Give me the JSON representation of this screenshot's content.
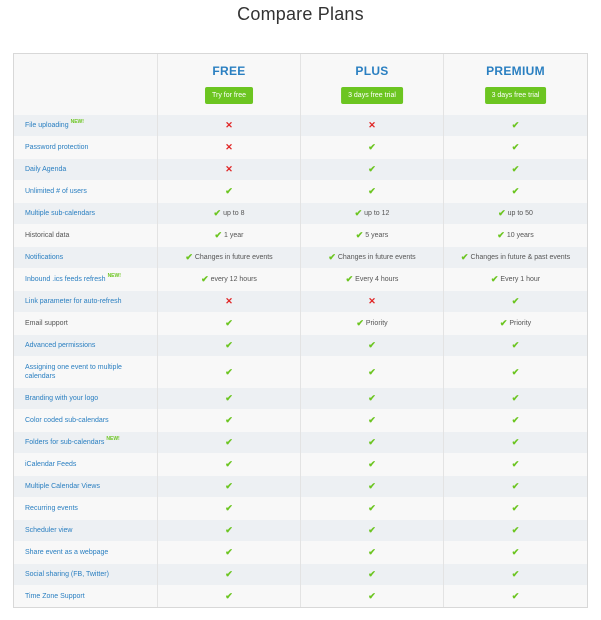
{
  "title": "Compare Plans",
  "plans": [
    {
      "name": "FREE",
      "button": "Try for free"
    },
    {
      "name": "PLUS",
      "button": "3 days free trial"
    },
    {
      "name": "PREMIUM",
      "button": "3 days free trial"
    }
  ],
  "new_badge": "NEW!",
  "features": [
    {
      "label": "File uploading",
      "tag": "NEW!",
      "color": "blue",
      "cells": [
        {
          "icon": "cross",
          "text": ""
        },
        {
          "icon": "cross",
          "text": ""
        },
        {
          "icon": "check",
          "text": ""
        }
      ]
    },
    {
      "label": "Password protection",
      "tag": "",
      "color": "blue",
      "cells": [
        {
          "icon": "cross",
          "text": ""
        },
        {
          "icon": "check",
          "text": ""
        },
        {
          "icon": "check",
          "text": ""
        }
      ]
    },
    {
      "label": "Daily Agenda",
      "tag": "",
      "color": "blue",
      "cells": [
        {
          "icon": "cross",
          "text": ""
        },
        {
          "icon": "check",
          "text": ""
        },
        {
          "icon": "check",
          "text": ""
        }
      ]
    },
    {
      "label": "Unlimited # of users",
      "tag": "",
      "color": "blue",
      "cells": [
        {
          "icon": "check",
          "text": ""
        },
        {
          "icon": "check",
          "text": ""
        },
        {
          "icon": "check",
          "text": ""
        }
      ]
    },
    {
      "label": "Multiple sub-calendars",
      "tag": "",
      "color": "blue",
      "cells": [
        {
          "icon": "check",
          "text": "up to 8"
        },
        {
          "icon": "check",
          "text": "up to 12"
        },
        {
          "icon": "check",
          "text": "up to 50"
        }
      ]
    },
    {
      "label": "Historical data",
      "tag": "",
      "color": "gray",
      "cells": [
        {
          "icon": "check",
          "text": "1 year"
        },
        {
          "icon": "check",
          "text": "5 years"
        },
        {
          "icon": "check",
          "text": "10 years"
        }
      ]
    },
    {
      "label": "Notifications",
      "tag": "",
      "color": "blue",
      "cells": [
        {
          "icon": "check",
          "text": "Changes in future events"
        },
        {
          "icon": "check",
          "text": "Changes in future events"
        },
        {
          "icon": "check",
          "text": "Changes in future & past events"
        }
      ]
    },
    {
      "label": "Inbound .ics feeds refresh",
      "tag": "NEW!",
      "color": "blue",
      "cells": [
        {
          "icon": "check",
          "text": "every 12 hours"
        },
        {
          "icon": "check",
          "text": "Every 4 hours"
        },
        {
          "icon": "check",
          "text": "Every 1 hour"
        }
      ]
    },
    {
      "label": "Link parameter for auto-refresh",
      "tag": "",
      "color": "blue",
      "cells": [
        {
          "icon": "cross",
          "text": ""
        },
        {
          "icon": "cross",
          "text": ""
        },
        {
          "icon": "check",
          "text": ""
        }
      ]
    },
    {
      "label": "Email support",
      "tag": "",
      "color": "gray",
      "cells": [
        {
          "icon": "check",
          "text": ""
        },
        {
          "icon": "check",
          "text": "Priority"
        },
        {
          "icon": "check",
          "text": "Priority"
        }
      ]
    },
    {
      "label": "Advanced permissions",
      "tag": "",
      "color": "blue",
      "cells": [
        {
          "icon": "check",
          "text": ""
        },
        {
          "icon": "check",
          "text": ""
        },
        {
          "icon": "check",
          "text": ""
        }
      ]
    },
    {
      "label": "Assigning one event to multiple calendars",
      "tag": "",
      "color": "blue",
      "tall": true,
      "cells": [
        {
          "icon": "check",
          "text": ""
        },
        {
          "icon": "check",
          "text": ""
        },
        {
          "icon": "check",
          "text": ""
        }
      ]
    },
    {
      "label": "Branding with your logo",
      "tag": "",
      "color": "blue",
      "cells": [
        {
          "icon": "check",
          "text": ""
        },
        {
          "icon": "check",
          "text": ""
        },
        {
          "icon": "check",
          "text": ""
        }
      ]
    },
    {
      "label": "Color coded sub-calendars",
      "tag": "",
      "color": "blue",
      "cells": [
        {
          "icon": "check",
          "text": ""
        },
        {
          "icon": "check",
          "text": ""
        },
        {
          "icon": "check",
          "text": ""
        }
      ]
    },
    {
      "label": "Folders for sub-calendars",
      "tag": "NEW!",
      "color": "blue",
      "cells": [
        {
          "icon": "check",
          "text": ""
        },
        {
          "icon": "check",
          "text": ""
        },
        {
          "icon": "check",
          "text": ""
        }
      ]
    },
    {
      "label": "iCalendar Feeds",
      "tag": "",
      "color": "blue",
      "cells": [
        {
          "icon": "check",
          "text": ""
        },
        {
          "icon": "check",
          "text": ""
        },
        {
          "icon": "check",
          "text": ""
        }
      ]
    },
    {
      "label": "Multiple Calendar Views",
      "tag": "",
      "color": "blue",
      "cells": [
        {
          "icon": "check",
          "text": ""
        },
        {
          "icon": "check",
          "text": ""
        },
        {
          "icon": "check",
          "text": ""
        }
      ]
    },
    {
      "label": "Recurring events",
      "tag": "",
      "color": "blue",
      "cells": [
        {
          "icon": "check",
          "text": ""
        },
        {
          "icon": "check",
          "text": ""
        },
        {
          "icon": "check",
          "text": ""
        }
      ]
    },
    {
      "label": "Scheduler view",
      "tag": "",
      "color": "blue",
      "cells": [
        {
          "icon": "check",
          "text": ""
        },
        {
          "icon": "check",
          "text": ""
        },
        {
          "icon": "check",
          "text": ""
        }
      ]
    },
    {
      "label": "Share event as a webpage",
      "tag": "",
      "color": "blue",
      "cells": [
        {
          "icon": "check",
          "text": ""
        },
        {
          "icon": "check",
          "text": ""
        },
        {
          "icon": "check",
          "text": ""
        }
      ]
    },
    {
      "label": "Social sharing (FB, Twitter)",
      "tag": "",
      "color": "blue",
      "cells": [
        {
          "icon": "check",
          "text": ""
        },
        {
          "icon": "check",
          "text": ""
        },
        {
          "icon": "check",
          "text": ""
        }
      ]
    },
    {
      "label": "Time Zone Support",
      "tag": "",
      "color": "blue",
      "cells": [
        {
          "icon": "check",
          "text": ""
        },
        {
          "icon": "check",
          "text": ""
        },
        {
          "icon": "check",
          "text": ""
        }
      ]
    }
  ],
  "icons": {
    "check": "checkmark-icon",
    "cross": "cross-icon"
  },
  "colors": {
    "accent": "#2a7fc1",
    "button": "#6cc521",
    "cross": "#e02424",
    "check": "#6cc521"
  }
}
